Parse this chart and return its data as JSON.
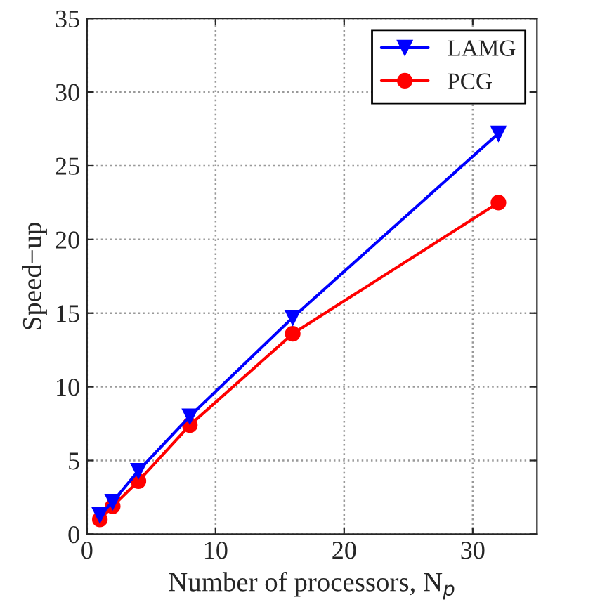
{
  "chart_data": {
    "type": "line",
    "xlabel": "Number of processors, N$_{p}$",
    "ylabel": "Speed−up",
    "x": [
      1,
      2,
      4,
      8,
      16,
      32
    ],
    "series": [
      {
        "name": "LAMG",
        "color": "#0000ff",
        "marker": "triangle",
        "values": [
          1.3,
          2.2,
          4.3,
          8.0,
          14.7,
          27.2
        ]
      },
      {
        "name": "PCG",
        "color": "#ff0000",
        "marker": "circle",
        "values": [
          1.0,
          1.9,
          3.6,
          7.4,
          13.6,
          22.5
        ]
      }
    ],
    "xlim": [
      0,
      35
    ],
    "xticks": [
      0,
      10,
      20,
      30
    ],
    "ylim": [
      0,
      35
    ],
    "yticks": [
      0,
      5,
      10,
      15,
      20,
      25,
      30,
      35
    ],
    "grid": true,
    "legend": "top right",
    "line_style": "solid"
  }
}
